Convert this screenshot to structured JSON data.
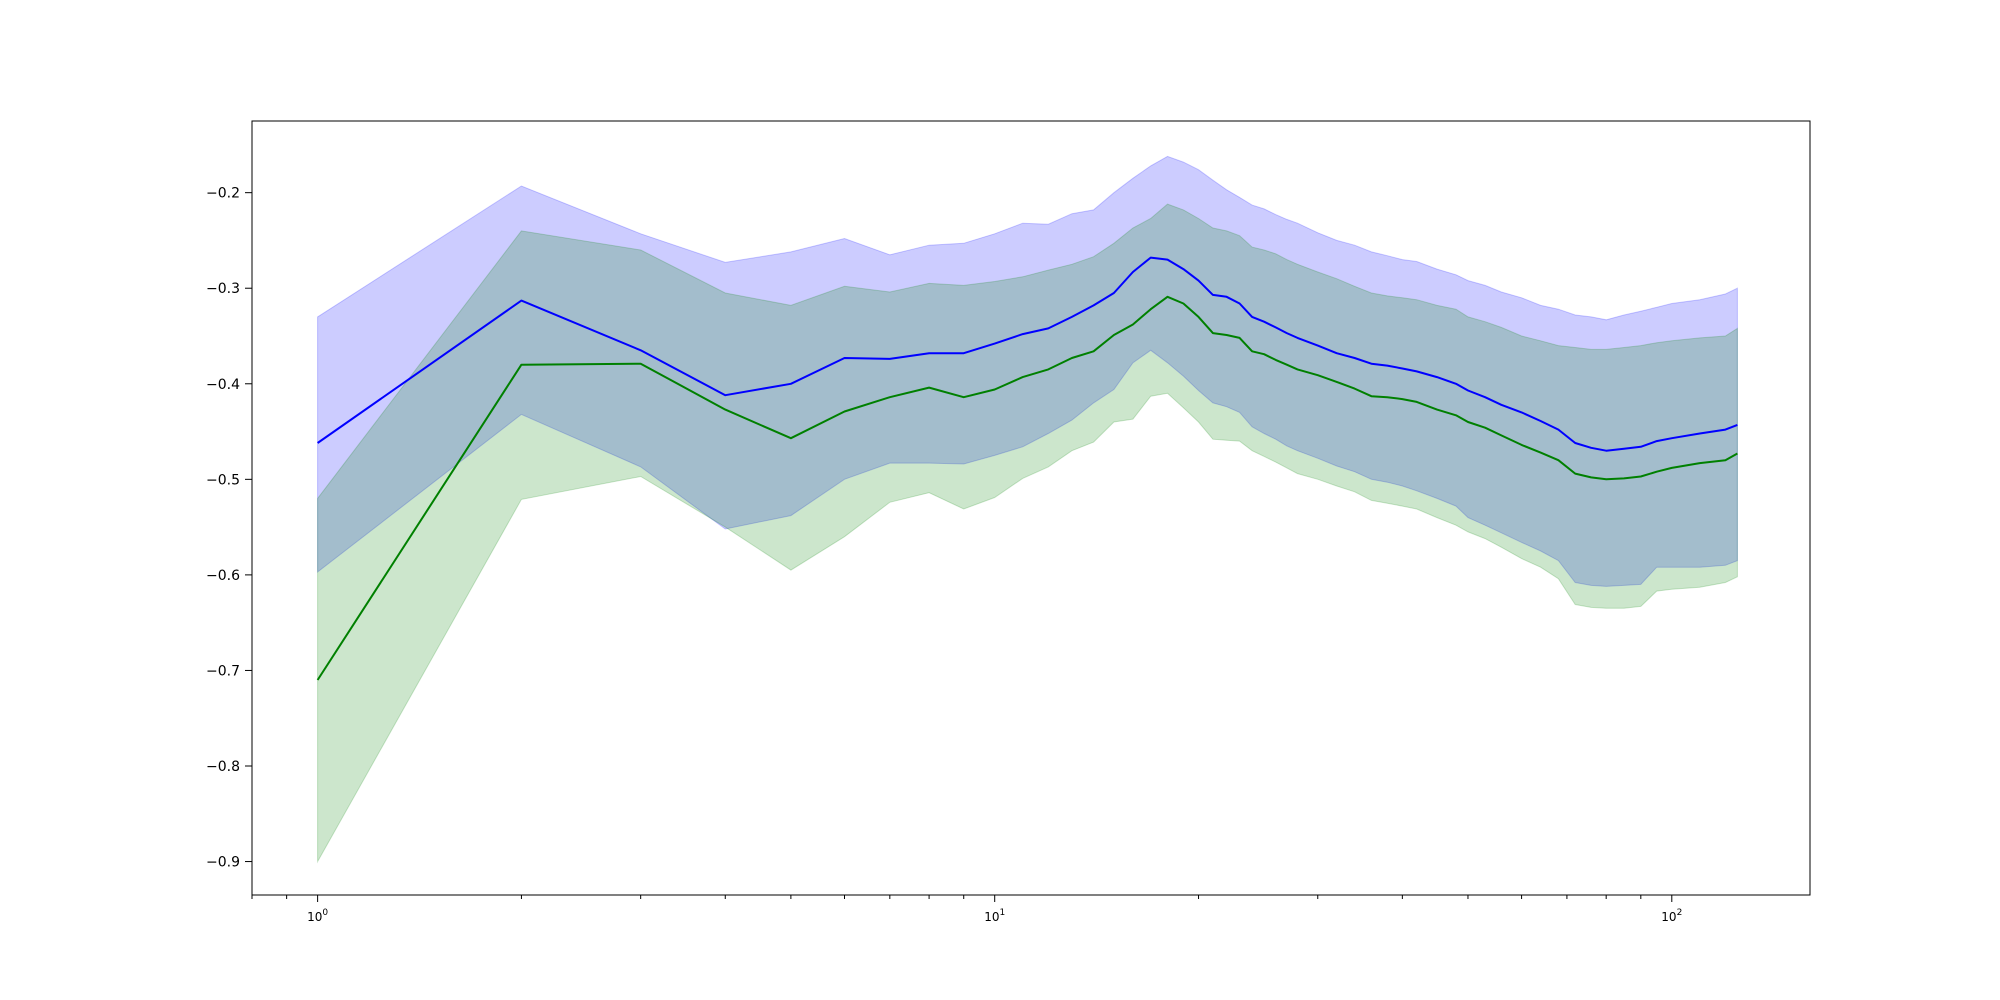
{
  "chart_data": {
    "type": "line",
    "title": "",
    "xlabel": "",
    "ylabel": "",
    "xscale": "log",
    "xlim": [
      0.8,
      160
    ],
    "ylim": [
      -0.935,
      -0.125
    ],
    "grid": false,
    "legend": "none",
    "x_major_ticks": [
      {
        "value": 1,
        "label": "10",
        "exp": "0"
      },
      {
        "value": 10,
        "label": "10",
        "exp": "1"
      },
      {
        "value": 100,
        "label": "10",
        "exp": "2"
      }
    ],
    "y_ticks": [
      {
        "value": -0.2,
        "label": "−0.2"
      },
      {
        "value": -0.3,
        "label": "−0.3"
      },
      {
        "value": -0.4,
        "label": "−0.4"
      },
      {
        "value": -0.5,
        "label": "−0.5"
      },
      {
        "value": -0.6,
        "label": "−0.6"
      },
      {
        "value": -0.7,
        "label": "−0.7"
      },
      {
        "value": -0.8,
        "label": "−0.8"
      },
      {
        "value": -0.9,
        "label": "−0.9"
      }
    ],
    "series": [
      {
        "color": "#0000ff",
        "band_color": "#0000ff",
        "band_opacity": 0.2,
        "x": [
          1,
          2,
          3,
          4,
          5,
          6,
          7,
          8,
          9,
          10,
          11,
          12,
          13,
          14,
          15,
          16,
          17,
          18,
          19,
          20,
          21,
          22,
          23,
          24,
          25,
          26,
          27,
          28,
          30,
          32,
          34,
          36,
          38,
          40,
          42,
          45,
          48,
          50,
          53,
          56,
          60,
          64,
          68,
          72,
          76,
          80,
          85,
          90,
          95,
          100,
          110,
          120,
          125
        ],
        "y": [
          -0.462,
          -0.313,
          -0.365,
          -0.412,
          -0.4,
          -0.373,
          -0.374,
          -0.368,
          -0.368,
          -0.358,
          -0.348,
          -0.342,
          -0.33,
          -0.318,
          -0.305,
          -0.283,
          -0.268,
          -0.27,
          -0.28,
          -0.292,
          -0.307,
          -0.309,
          -0.316,
          -0.33,
          -0.335,
          -0.341,
          -0.347,
          -0.352,
          -0.36,
          -0.368,
          -0.373,
          -0.379,
          -0.381,
          -0.384,
          -0.387,
          -0.393,
          -0.4,
          -0.407,
          -0.414,
          -0.422,
          -0.43,
          -0.439,
          -0.448,
          -0.462,
          -0.467,
          -0.47,
          -0.468,
          -0.466,
          -0.46,
          -0.457,
          -0.452,
          -0.448,
          -0.443
        ],
        "upper": [
          -0.33,
          -0.193,
          -0.243,
          -0.273,
          -0.262,
          -0.248,
          -0.265,
          -0.255,
          -0.253,
          -0.243,
          -0.232,
          -0.233,
          -0.222,
          -0.218,
          -0.2,
          -0.185,
          -0.172,
          -0.162,
          -0.168,
          -0.176,
          -0.187,
          -0.197,
          -0.205,
          -0.213,
          -0.217,
          -0.223,
          -0.228,
          -0.232,
          -0.242,
          -0.25,
          -0.255,
          -0.262,
          -0.266,
          -0.27,
          -0.272,
          -0.28,
          -0.286,
          -0.292,
          -0.297,
          -0.304,
          -0.31,
          -0.318,
          -0.322,
          -0.328,
          -0.33,
          -0.333,
          -0.328,
          -0.324,
          -0.32,
          -0.316,
          -0.312,
          -0.306,
          -0.3
        ],
        "lower": [
          -0.597,
          -0.432,
          -0.487,
          -0.552,
          -0.538,
          -0.5,
          -0.483,
          -0.483,
          -0.484,
          -0.475,
          -0.466,
          -0.452,
          -0.438,
          -0.42,
          -0.406,
          -0.378,
          -0.365,
          -0.378,
          -0.392,
          -0.407,
          -0.42,
          -0.424,
          -0.43,
          -0.445,
          -0.452,
          -0.458,
          -0.465,
          -0.47,
          -0.478,
          -0.486,
          -0.492,
          -0.5,
          -0.503,
          -0.507,
          -0.512,
          -0.52,
          -0.528,
          -0.54,
          -0.548,
          -0.556,
          -0.566,
          -0.575,
          -0.585,
          -0.608,
          -0.611,
          -0.612,
          -0.611,
          -0.61,
          -0.592,
          -0.592,
          -0.592,
          -0.59,
          -0.585
        ]
      },
      {
        "color": "#008000",
        "band_color": "#008000",
        "band_opacity": 0.2,
        "x": [
          1,
          2,
          3,
          4,
          5,
          6,
          7,
          8,
          9,
          10,
          11,
          12,
          13,
          14,
          15,
          16,
          17,
          18,
          19,
          20,
          21,
          22,
          23,
          24,
          25,
          26,
          27,
          28,
          30,
          32,
          34,
          36,
          38,
          40,
          42,
          45,
          48,
          50,
          53,
          56,
          60,
          64,
          68,
          72,
          76,
          80,
          85,
          90,
          95,
          100,
          110,
          120,
          125
        ],
        "y": [
          -0.71,
          -0.38,
          -0.379,
          -0.427,
          -0.457,
          -0.429,
          -0.414,
          -0.404,
          -0.414,
          -0.406,
          -0.393,
          -0.385,
          -0.373,
          -0.366,
          -0.349,
          -0.338,
          -0.322,
          -0.309,
          -0.316,
          -0.33,
          -0.347,
          -0.349,
          -0.352,
          -0.366,
          -0.369,
          -0.375,
          -0.38,
          -0.385,
          -0.391,
          -0.398,
          -0.405,
          -0.413,
          -0.414,
          -0.416,
          -0.419,
          -0.427,
          -0.433,
          -0.44,
          -0.446,
          -0.454,
          -0.464,
          -0.472,
          -0.48,
          -0.494,
          -0.498,
          -0.5,
          -0.499,
          -0.497,
          -0.492,
          -0.488,
          -0.483,
          -0.48,
          -0.473
        ],
        "upper": [
          -0.52,
          -0.24,
          -0.26,
          -0.305,
          -0.318,
          -0.298,
          -0.304,
          -0.295,
          -0.297,
          -0.293,
          -0.288,
          -0.281,
          -0.275,
          -0.267,
          -0.253,
          -0.237,
          -0.227,
          -0.212,
          -0.218,
          -0.227,
          -0.237,
          -0.24,
          -0.245,
          -0.257,
          -0.26,
          -0.264,
          -0.27,
          -0.275,
          -0.283,
          -0.29,
          -0.298,
          -0.305,
          -0.308,
          -0.31,
          -0.312,
          -0.318,
          -0.322,
          -0.33,
          -0.335,
          -0.341,
          -0.35,
          -0.355,
          -0.36,
          -0.362,
          -0.364,
          -0.364,
          -0.362,
          -0.36,
          -0.357,
          -0.355,
          -0.352,
          -0.35,
          -0.342
        ],
        "lower": [
          -0.9,
          -0.521,
          -0.497,
          -0.55,
          -0.595,
          -0.56,
          -0.524,
          -0.514,
          -0.531,
          -0.519,
          -0.499,
          -0.487,
          -0.47,
          -0.461,
          -0.44,
          -0.437,
          -0.413,
          -0.41,
          -0.425,
          -0.44,
          -0.458,
          -0.459,
          -0.46,
          -0.47,
          -0.476,
          -0.482,
          -0.488,
          -0.494,
          -0.5,
          -0.507,
          -0.513,
          -0.522,
          -0.525,
          -0.528,
          -0.531,
          -0.54,
          -0.548,
          -0.555,
          -0.562,
          -0.571,
          -0.583,
          -0.592,
          -0.604,
          -0.631,
          -0.634,
          -0.635,
          -0.635,
          -0.633,
          -0.617,
          -0.615,
          -0.613,
          -0.608,
          -0.602
        ]
      }
    ]
  }
}
